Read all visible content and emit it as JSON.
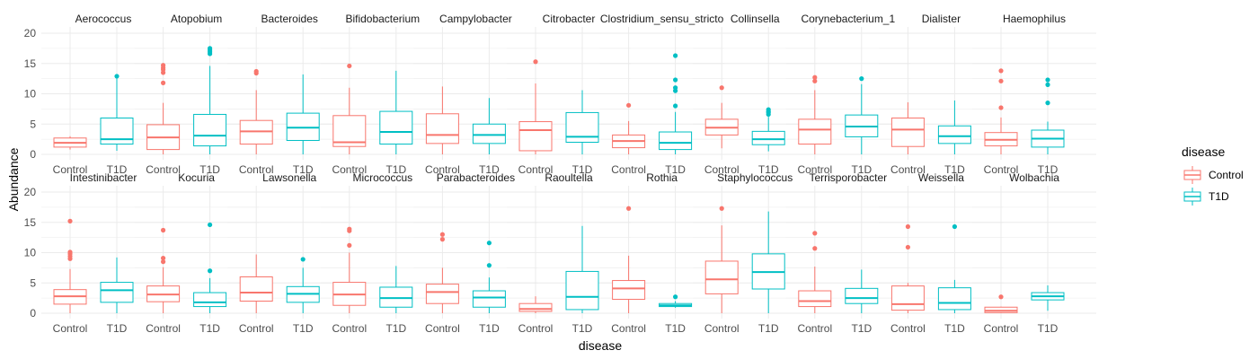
{
  "chart_data": {
    "type": "boxplot",
    "xlabel": "disease",
    "ylabel": "Abundance",
    "ylim": [
      0,
      20
    ],
    "yticks": [
      0,
      5,
      10,
      15,
      20
    ],
    "categories": [
      "Control",
      "T1D"
    ],
    "colors": {
      "Control": "#F8766D",
      "T1D": "#00BFC4"
    },
    "grid": true,
    "legend": {
      "title": "disease",
      "position": "right",
      "entries": [
        "Control",
        "T1D"
      ]
    },
    "facets": [
      {
        "name": "Aerococcus",
        "boxes": {
          "Control": {
            "min": 0.8,
            "q1": 1.2,
            "median": 1.9,
            "q3": 2.7,
            "max": 3.0,
            "outliers": []
          },
          "T1D": {
            "min": 0.6,
            "q1": 1.7,
            "median": 2.5,
            "q3": 6.0,
            "max": 12.9,
            "outliers": [
              12.9
            ]
          }
        }
      },
      {
        "name": "Atopobium",
        "boxes": {
          "Control": {
            "min": 0.0,
            "q1": 0.8,
            "median": 2.8,
            "q3": 4.9,
            "max": 8.5,
            "outliers": [
              11.8,
              13.5,
              14.0,
              14.3,
              14.7
            ]
          },
          "T1D": {
            "min": 0.0,
            "q1": 1.4,
            "median": 3.1,
            "q3": 6.6,
            "max": 14.6,
            "outliers": [
              16.6,
              16.9,
              17.2,
              17.5
            ]
          }
        }
      },
      {
        "name": "Bacteroides",
        "boxes": {
          "Control": {
            "min": 0.0,
            "q1": 1.7,
            "median": 3.8,
            "q3": 5.6,
            "max": 10.6,
            "outliers": [
              13.4,
              13.7
            ]
          },
          "T1D": {
            "min": 0.0,
            "q1": 2.3,
            "median": 4.4,
            "q3": 6.8,
            "max": 13.2,
            "outliers": []
          }
        }
      },
      {
        "name": "Bifidobacterium",
        "boxes": {
          "Control": {
            "min": 0.0,
            "q1": 1.3,
            "median": 2.0,
            "q3": 6.4,
            "max": 11.0,
            "outliers": [
              14.6
            ]
          },
          "T1D": {
            "min": 0.0,
            "q1": 1.7,
            "median": 3.7,
            "q3": 7.1,
            "max": 13.8,
            "outliers": []
          }
        }
      },
      {
        "name": "Campylobacter",
        "boxes": {
          "Control": {
            "min": 0.0,
            "q1": 1.8,
            "median": 3.2,
            "q3": 6.7,
            "max": 11.2,
            "outliers": []
          },
          "T1D": {
            "min": 0.0,
            "q1": 1.8,
            "median": 3.2,
            "q3": 5.0,
            "max": 9.3,
            "outliers": []
          }
        }
      },
      {
        "name": "Citrobacter",
        "boxes": {
          "Control": {
            "min": 0.0,
            "q1": 0.6,
            "median": 4.0,
            "q3": 5.4,
            "max": 11.7,
            "outliers": [
              15.3
            ]
          },
          "T1D": {
            "min": 0.0,
            "q1": 2.0,
            "median": 2.9,
            "q3": 6.9,
            "max": 10.6,
            "outliers": []
          }
        }
      },
      {
        "name": "Clostridium_sensu_stricto",
        "boxes": {
          "Control": {
            "min": 0.0,
            "q1": 1.1,
            "median": 2.2,
            "q3": 3.2,
            "max": 5.5,
            "outliers": [
              8.1
            ]
          },
          "T1D": {
            "min": 0.0,
            "q1": 0.8,
            "median": 1.9,
            "q3": 3.7,
            "max": 7.0,
            "outliers": [
              8.0,
              10.5,
              11.0,
              12.3,
              16.3
            ]
          }
        }
      },
      {
        "name": "Collinsella",
        "boxes": {
          "Control": {
            "min": 1.0,
            "q1": 3.2,
            "median": 4.4,
            "q3": 5.8,
            "max": 8.5,
            "outliers": [
              11.0
            ]
          },
          "T1D": {
            "min": 0.5,
            "q1": 1.6,
            "median": 2.5,
            "q3": 3.8,
            "max": 6.2,
            "outliers": [
              6.6,
              6.9,
              7.1,
              7.4
            ]
          }
        }
      },
      {
        "name": "Corynebacterium_1",
        "boxes": {
          "Control": {
            "min": 0.0,
            "q1": 1.7,
            "median": 4.1,
            "q3": 5.8,
            "max": 10.6,
            "outliers": [
              12.1,
              12.7
            ]
          },
          "T1D": {
            "min": 0.0,
            "q1": 2.9,
            "median": 4.6,
            "q3": 6.5,
            "max": 11.6,
            "outliers": [
              12.5
            ]
          }
        }
      },
      {
        "name": "Dialister",
        "boxes": {
          "Control": {
            "min": 0.0,
            "q1": 1.3,
            "median": 4.1,
            "q3": 6.0,
            "max": 8.6,
            "outliers": []
          },
          "T1D": {
            "min": 0.0,
            "q1": 1.8,
            "median": 3.0,
            "q3": 4.7,
            "max": 8.9,
            "outliers": []
          }
        }
      },
      {
        "name": "Haemophilus",
        "boxes": {
          "Control": {
            "min": 0.0,
            "q1": 1.4,
            "median": 2.4,
            "q3": 3.6,
            "max": 6.1,
            "outliers": [
              7.7,
              12.1,
              13.8
            ]
          },
          "T1D": {
            "min": 0.0,
            "q1": 1.2,
            "median": 2.6,
            "q3": 4.0,
            "max": 5.4,
            "outliers": [
              8.5,
              11.5,
              12.3
            ]
          }
        }
      },
      {
        "name": "Intestinibacter",
        "boxes": {
          "Control": {
            "min": 0.0,
            "q1": 1.5,
            "median": 2.8,
            "q3": 3.9,
            "max": 7.3,
            "outliers": [
              9.0,
              9.4,
              9.8,
              10.1,
              15.2
            ]
          },
          "T1D": {
            "min": 0.0,
            "q1": 1.8,
            "median": 3.8,
            "q3": 5.1,
            "max": 9.2,
            "outliers": []
          }
        }
      },
      {
        "name": "Kocuria",
        "boxes": {
          "Control": {
            "min": 0.0,
            "q1": 1.9,
            "median": 3.1,
            "q3": 4.5,
            "max": 7.6,
            "outliers": [
              8.5,
              9.1,
              13.7
            ]
          },
          "T1D": {
            "min": 0.0,
            "q1": 1.1,
            "median": 1.8,
            "q3": 3.4,
            "max": 5.8,
            "outliers": [
              7.0,
              14.6
            ]
          }
        }
      },
      {
        "name": "Lawsonella",
        "boxes": {
          "Control": {
            "min": 0.0,
            "q1": 2.0,
            "median": 3.4,
            "q3": 6.0,
            "max": 9.7,
            "outliers": []
          },
          "T1D": {
            "min": 0.0,
            "q1": 1.8,
            "median": 3.2,
            "q3": 4.4,
            "max": 7.5,
            "outliers": [
              8.9
            ]
          }
        }
      },
      {
        "name": "Micrococcus",
        "boxes": {
          "Control": {
            "min": 0.0,
            "q1": 1.3,
            "median": 3.1,
            "q3": 5.1,
            "max": 10.0,
            "outliers": [
              11.2,
              13.6,
              13.9
            ]
          },
          "T1D": {
            "min": 0.0,
            "q1": 1.0,
            "median": 2.5,
            "q3": 4.3,
            "max": 7.8,
            "outliers": []
          }
        }
      },
      {
        "name": "Parabacteroides",
        "boxes": {
          "Control": {
            "min": 0.0,
            "q1": 1.6,
            "median": 3.5,
            "q3": 4.8,
            "max": 7.5,
            "outliers": [
              12.2,
              13.0
            ]
          },
          "T1D": {
            "min": 0.0,
            "q1": 1.0,
            "median": 2.6,
            "q3": 3.7,
            "max": 5.9,
            "outliers": [
              7.9,
              11.6
            ]
          }
        }
      },
      {
        "name": "Raoultella",
        "boxes": {
          "Control": {
            "min": 0.0,
            "q1": 0.3,
            "median": 0.7,
            "q3": 1.6,
            "max": 2.8,
            "outliers": []
          },
          "T1D": {
            "min": 0.0,
            "q1": 0.6,
            "median": 2.7,
            "q3": 6.9,
            "max": 14.4,
            "outliers": []
          }
        }
      },
      {
        "name": "Rothia",
        "boxes": {
          "Control": {
            "min": 0.0,
            "q1": 2.3,
            "median": 4.1,
            "q3": 5.4,
            "max": 9.5,
            "outliers": [
              17.3
            ]
          },
          "T1D": {
            "min": 0.9,
            "q1": 1.1,
            "median": 1.3,
            "q3": 1.6,
            "max": 2.0,
            "outliers": [
              2.7
            ]
          }
        }
      },
      {
        "name": "Staphylococcus",
        "boxes": {
          "Control": {
            "min": 0.0,
            "q1": 3.2,
            "median": 5.6,
            "q3": 8.6,
            "max": 14.5,
            "outliers": [
              17.3
            ]
          },
          "T1D": {
            "min": 0.0,
            "q1": 4.0,
            "median": 6.8,
            "q3": 9.8,
            "max": 16.8,
            "outliers": []
          }
        }
      },
      {
        "name": "Terrisporobacter",
        "boxes": {
          "Control": {
            "min": 0.0,
            "q1": 1.1,
            "median": 2.0,
            "q3": 3.7,
            "max": 7.7,
            "outliers": [
              10.7,
              13.2
            ]
          },
          "T1D": {
            "min": 0.0,
            "q1": 1.6,
            "median": 2.5,
            "q3": 4.1,
            "max": 7.2,
            "outliers": []
          }
        }
      },
      {
        "name": "Weissella",
        "boxes": {
          "Control": {
            "min": 0.0,
            "q1": 0.5,
            "median": 1.5,
            "q3": 4.5,
            "max": 5.0,
            "outliers": [
              10.9,
              14.3
            ]
          },
          "T1D": {
            "min": 0.0,
            "q1": 0.6,
            "median": 1.7,
            "q3": 4.2,
            "max": 5.5,
            "outliers": [
              14.3
            ]
          }
        }
      },
      {
        "name": "Wolbachia",
        "boxes": {
          "Control": {
            "min": 0.0,
            "q1": 0.1,
            "median": 0.4,
            "q3": 1.0,
            "max": 1.1,
            "outliers": [
              2.7
            ]
          },
          "T1D": {
            "min": 0.4,
            "q1": 2.2,
            "median": 2.8,
            "q3": 3.4,
            "max": 4.6,
            "outliers": []
          }
        }
      }
    ]
  }
}
